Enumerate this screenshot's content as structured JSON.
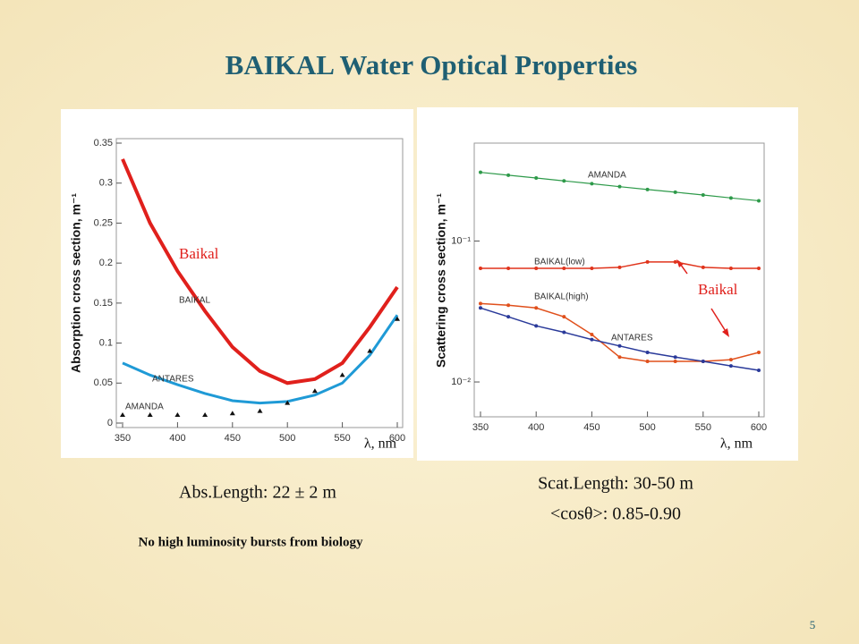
{
  "slide": {
    "title": "BAIKAL Water Optical Properties",
    "abs_caption": "Abs.Length: 22 ± 2 m",
    "note": "No high luminosity bursts from biology",
    "scat_caption": "Scat.Length: 30-50 m",
    "cos_caption": "<cosθ>: 0.85-0.90",
    "page_number": "5"
  },
  "chart_data": [
    {
      "type": "line",
      "y_label": "Absorption cross section, m⁻¹",
      "x_label": "λ, nm",
      "x": [
        350,
        375,
        400,
        425,
        450,
        475,
        500,
        525,
        550,
        575,
        600
      ],
      "xlim": [
        350,
        600
      ],
      "xticks": [
        350,
        400,
        450,
        500,
        550,
        600
      ],
      "ylim": [
        0,
        0.35
      ],
      "yticks": [
        0,
        0.05,
        0.1,
        0.15,
        0.2,
        0.25,
        0.3,
        0.35
      ],
      "log_y": false,
      "series": [
        {
          "name": "BAIKAL",
          "color": "#e0201c",
          "mode": "line",
          "values": [
            0.33,
            0.25,
            0.19,
            0.14,
            0.095,
            0.065,
            0.05,
            0.055,
            0.075,
            0.12,
            0.17
          ]
        },
        {
          "name": "ANTARES",
          "color": "#1f9ad6",
          "mode": "line",
          "values": [
            0.075,
            0.06,
            0.048,
            0.037,
            0.028,
            0.025,
            0.027,
            0.035,
            0.05,
            0.085,
            0.135
          ]
        },
        {
          "name": "AMANDA",
          "color": "#111111",
          "mode": "markers",
          "values": [
            0.01,
            0.01,
            0.01,
            0.01,
            0.012,
            0.015,
            0.025,
            0.04,
            0.06,
            0.09,
            0.13
          ]
        }
      ],
      "annotations": [
        "Baikal"
      ]
    },
    {
      "type": "line",
      "y_label": "Scattering cross section, m⁻¹",
      "x_label": "λ, nm",
      "x": [
        350,
        375,
        400,
        425,
        450,
        475,
        500,
        525,
        550,
        575,
        600
      ],
      "xlim": [
        350,
        600
      ],
      "xticks": [
        350,
        400,
        450,
        500,
        550,
        600
      ],
      "ylim": [
        0.006,
        0.46
      ],
      "yticks": [
        {
          "value": 0.01,
          "label": "10⁻²"
        },
        {
          "value": 0.1,
          "label": "10⁻¹"
        }
      ],
      "log_y": true,
      "series": [
        {
          "name": "AMANDA",
          "color": "#2e9a4a",
          "mode": "line",
          "values": [
            0.307,
            0.293,
            0.28,
            0.267,
            0.255,
            0.243,
            0.232,
            0.222,
            0.212,
            0.202,
            0.193
          ]
        },
        {
          "name": "BAIKAL(low)",
          "color": "#e0341c",
          "mode": "line",
          "values": [
            0.064,
            0.064,
            0.064,
            0.064,
            0.064,
            0.065,
            0.071,
            0.071,
            0.065,
            0.064,
            0.064
          ]
        },
        {
          "name": "BAIKAL(high)",
          "color": "#e0501c",
          "mode": "line",
          "values": [
            0.036,
            0.035,
            0.0335,
            0.029,
            0.0217,
            0.015,
            0.014,
            0.014,
            0.014,
            0.0144,
            0.0162
          ]
        },
        {
          "name": "ANTARES",
          "color": "#2a3a9a",
          "mode": "line",
          "values": [
            0.0335,
            0.029,
            0.025,
            0.0225,
            0.02,
            0.018,
            0.0162,
            0.015,
            0.014,
            0.013,
            0.0121
          ]
        }
      ],
      "annotations": [
        "Baikal"
      ]
    }
  ]
}
